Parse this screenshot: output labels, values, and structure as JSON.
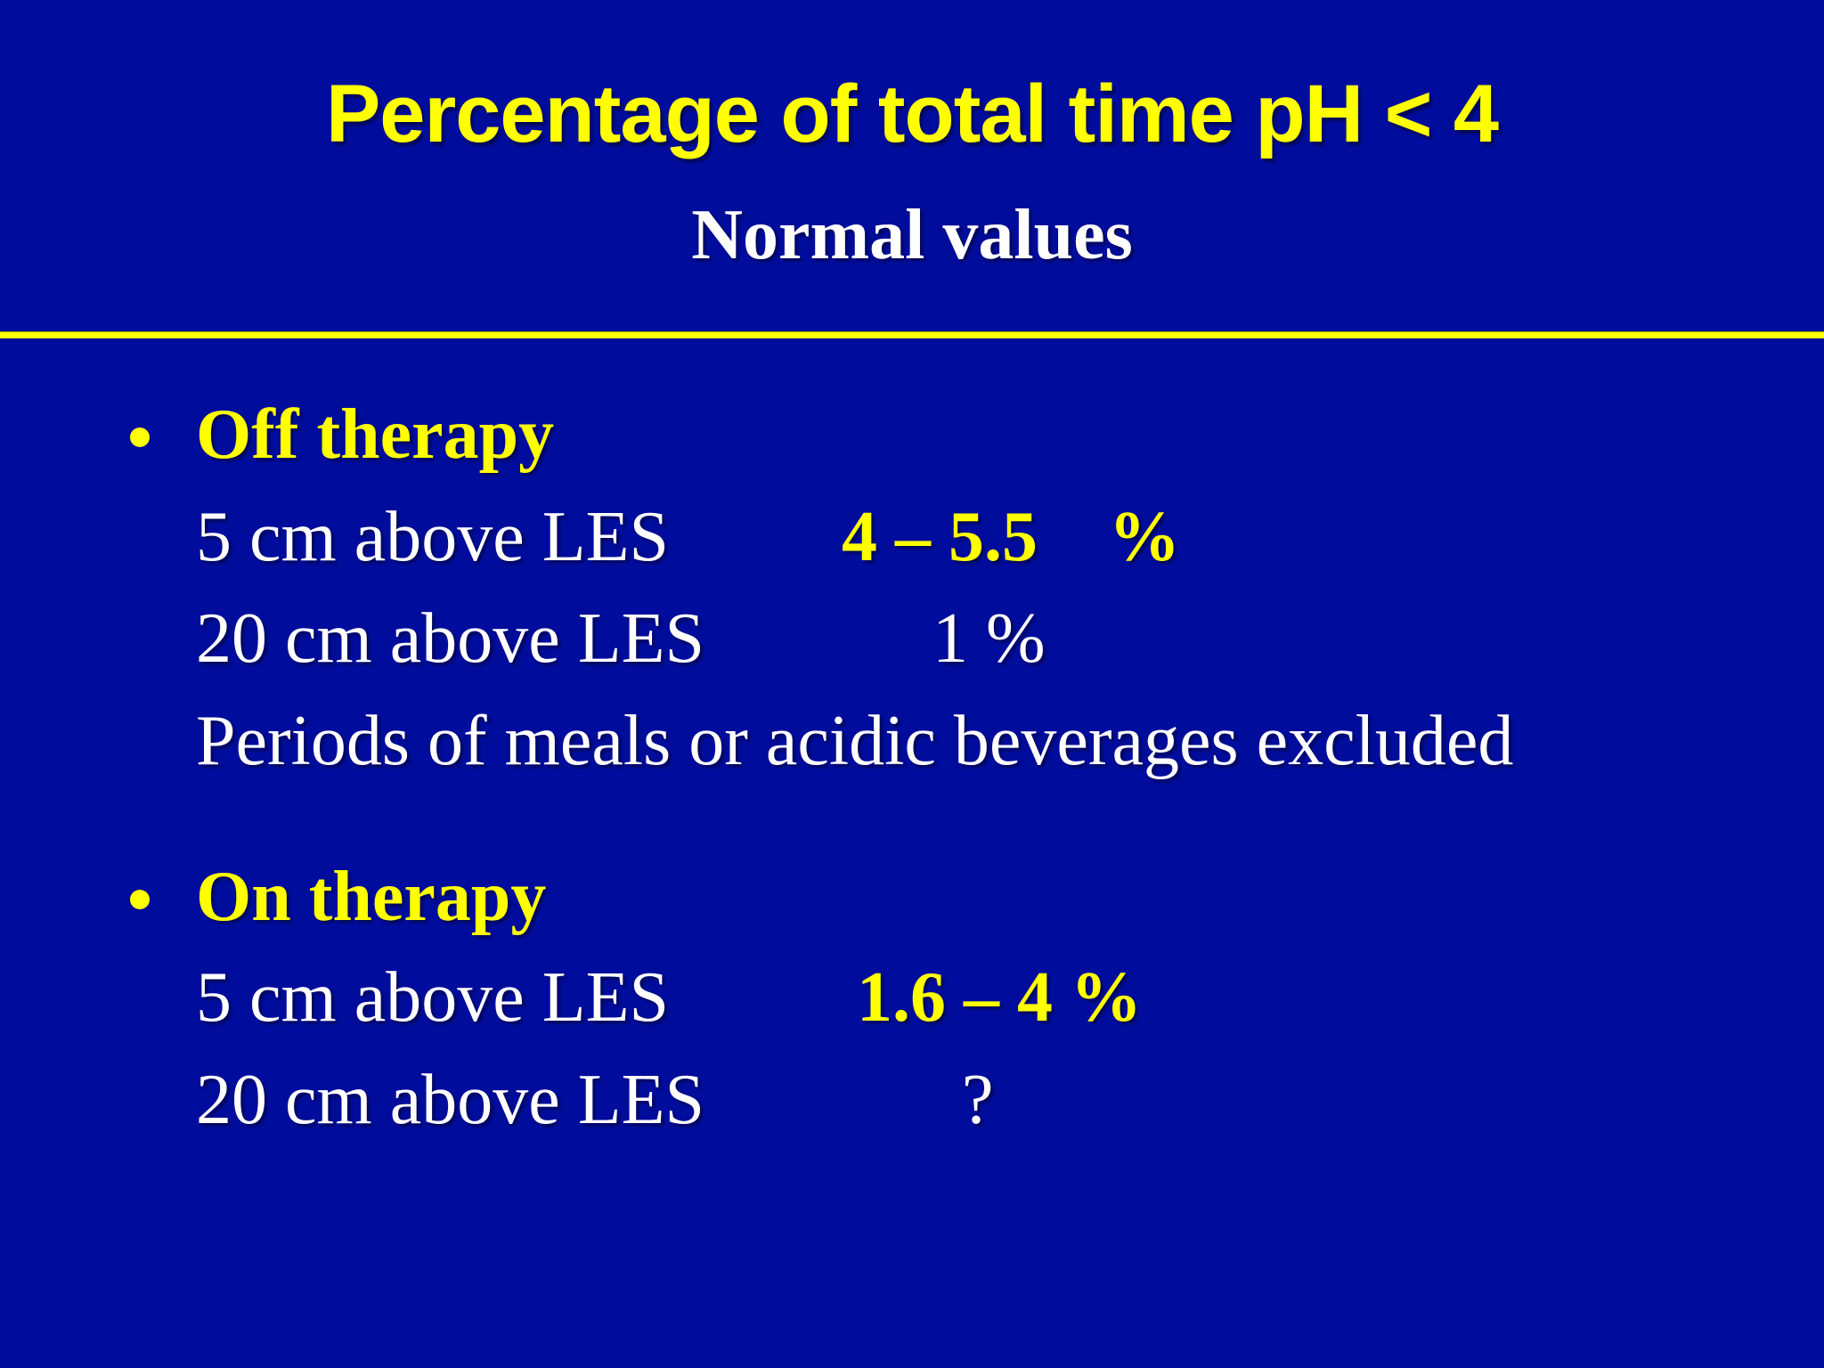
{
  "slide": {
    "title": "Percentage of total time pH < 4",
    "subtitle": "Normal values",
    "sections": [
      {
        "heading": "Off therapy",
        "rows": [
          {
            "label": "5 cm above LES",
            "value": "4 – 5.5    %"
          },
          {
            "label": "20 cm above LES",
            "value": "1 %"
          }
        ],
        "note": "Periods of meals or acidic beverages excluded"
      },
      {
        "heading": "On therapy",
        "rows": [
          {
            "label": "5 cm above LES",
            "value": "1.6 – 4 %"
          },
          {
            "label": "20 cm above LES",
            "value": "?"
          }
        ]
      }
    ],
    "colors": {
      "background": "#000d9c",
      "accent_yellow": "#ffff00",
      "text_white": "#ffffff"
    }
  }
}
